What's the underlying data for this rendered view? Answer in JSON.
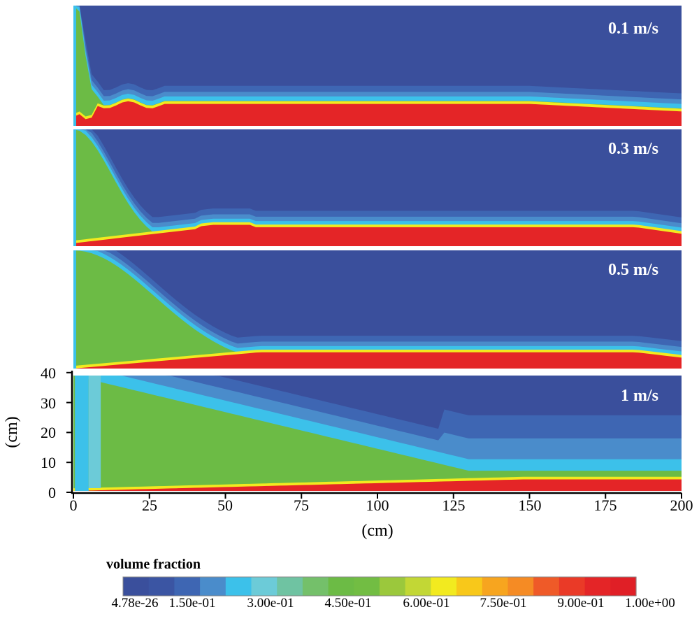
{
  "chart_data": {
    "type": "heatmap",
    "title": "",
    "xlabel": "(cm)",
    "ylabel": "(cm)",
    "xlim": [
      0,
      200
    ],
    "ylim": [
      0,
      40
    ],
    "x_ticks": [
      "0",
      "25",
      "50",
      "75",
      "100",
      "125",
      "150",
      "175",
      "200"
    ],
    "y_ticks": [
      "0",
      "10",
      "20",
      "30",
      "40"
    ],
    "panels": [
      {
        "label": "0.1 m/s"
      },
      {
        "label": "0.3 m/s"
      },
      {
        "label": "0.5 m/s"
      },
      {
        "label": "1 m/s"
      }
    ],
    "colorbar": {
      "title": "volume fraction",
      "tick_labels": [
        "4.78e-26",
        "1.50e-01",
        "3.00e-01",
        "4.50e-01",
        "6.00e-01",
        "7.50e-01",
        "9.00e-01",
        "1.00e+00"
      ],
      "colors": [
        "#3a4f9c",
        "#3b55a3",
        "#3e66b3",
        "#4a8ccb",
        "#3cc1ea",
        "#6ccbd8",
        "#6fc3a2",
        "#74c06a",
        "#6cbb45",
        "#72bd43",
        "#9bc83c",
        "#c2d735",
        "#f2ea1f",
        "#f8c81a",
        "#f7a51f",
        "#f58b24",
        "#ef5a28",
        "#ea3a27",
        "#e42527",
        "#e01f26"
      ]
    }
  }
}
